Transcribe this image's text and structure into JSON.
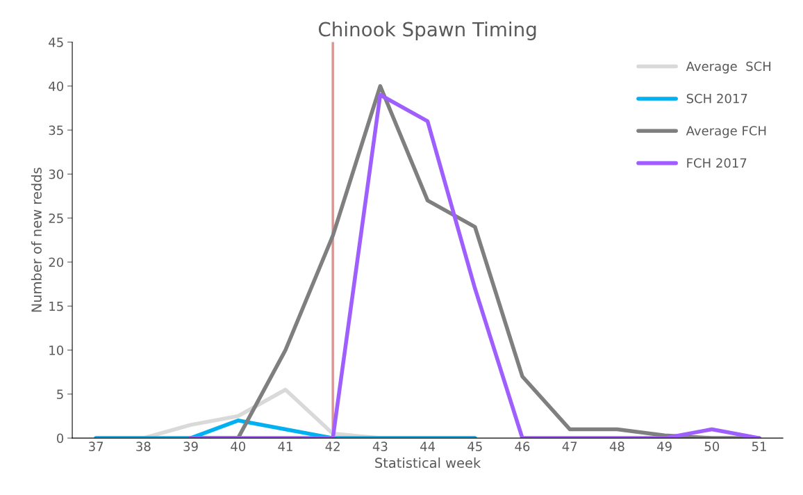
{
  "chart_data": {
    "type": "line",
    "title": "Chinook Spawn Timing",
    "xlabel": "Statistical week",
    "ylabel": "Number of new redds",
    "series": [
      {
        "name": "Average  SCH",
        "color": "#d9d9d9",
        "x": [
          37,
          38,
          39,
          40,
          41,
          42,
          43,
          44,
          45
        ],
        "values": [
          0,
          0,
          1.5,
          2.5,
          5.5,
          0.5,
          0,
          0,
          0
        ]
      },
      {
        "name": "SCH 2017",
        "color": "#00b0f0",
        "x": [
          37,
          38,
          39,
          40,
          41,
          42,
          43,
          44,
          45
        ],
        "values": [
          0,
          0,
          0,
          2,
          1,
          0,
          0,
          0,
          0
        ]
      },
      {
        "name": "Average FCH",
        "color": "#7f7f7f",
        "x": [
          39,
          40,
          41,
          42,
          43,
          44,
          45,
          46,
          47,
          48,
          49,
          50,
          51
        ],
        "values": [
          0,
          0,
          10,
          23,
          40,
          27,
          24,
          7,
          1,
          1,
          0.3,
          0,
          0
        ]
      },
      {
        "name": "FCH 2017",
        "color": "#9f5fff",
        "x": [
          39,
          40,
          41,
          42,
          43,
          44,
          45,
          46,
          47,
          48,
          49,
          50,
          51
        ],
        "values": [
          0,
          0,
          0,
          0,
          39,
          36,
          17,
          0,
          0,
          0,
          0,
          1,
          0
        ]
      }
    ],
    "xlim": [
      36.5,
      51.5
    ],
    "xticks": [
      37,
      38,
      39,
      40,
      41,
      42,
      43,
      44,
      45,
      46,
      47,
      48,
      49,
      50,
      51
    ],
    "ylim": [
      0,
      45
    ],
    "yticks": [
      0,
      5,
      10,
      15,
      20,
      25,
      30,
      35,
      40,
      45
    ],
    "ref_lines": [
      {
        "axis": "x",
        "value": 42,
        "color": "#d99694"
      }
    ],
    "legend": "top right",
    "grid": false,
    "marker": "none",
    "line_style": "solid"
  }
}
